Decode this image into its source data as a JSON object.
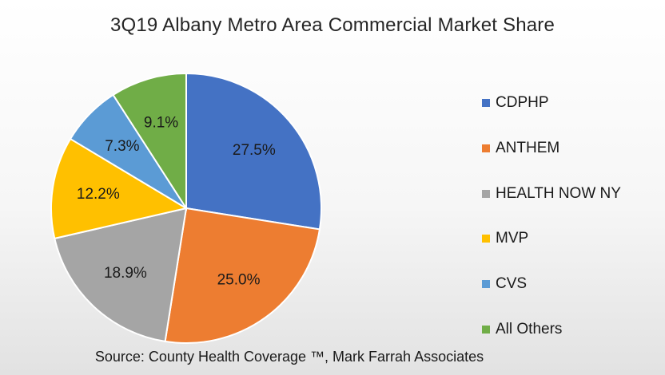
{
  "chart_data": {
    "type": "pie",
    "title": "3Q19 Albany Metro Area Commercial  Market Share",
    "source": "Source: County Health Coverage ™, Mark Farrah Associates",
    "slices": [
      {
        "label": "CDPHP",
        "value": 27.5,
        "display": "27.5%",
        "color": "#4472C4"
      },
      {
        "label": "ANTHEM",
        "value": 25.0,
        "display": "25.0%",
        "color": "#ED7D31"
      },
      {
        "label": "HEALTH NOW NY",
        "value": 18.9,
        "display": "18.9%",
        "color": "#A5A5A5"
      },
      {
        "label": "MVP",
        "value": 12.2,
        "display": "12.2%",
        "color": "#FFC000"
      },
      {
        "label": "CVS",
        "value": 7.3,
        "display": "7.3%",
        "color": "#5B9BD5"
      },
      {
        "label": "All Others",
        "value": 9.1,
        "display": "9.1%",
        "color": "#70AD47"
      }
    ],
    "legend_position": "right"
  }
}
